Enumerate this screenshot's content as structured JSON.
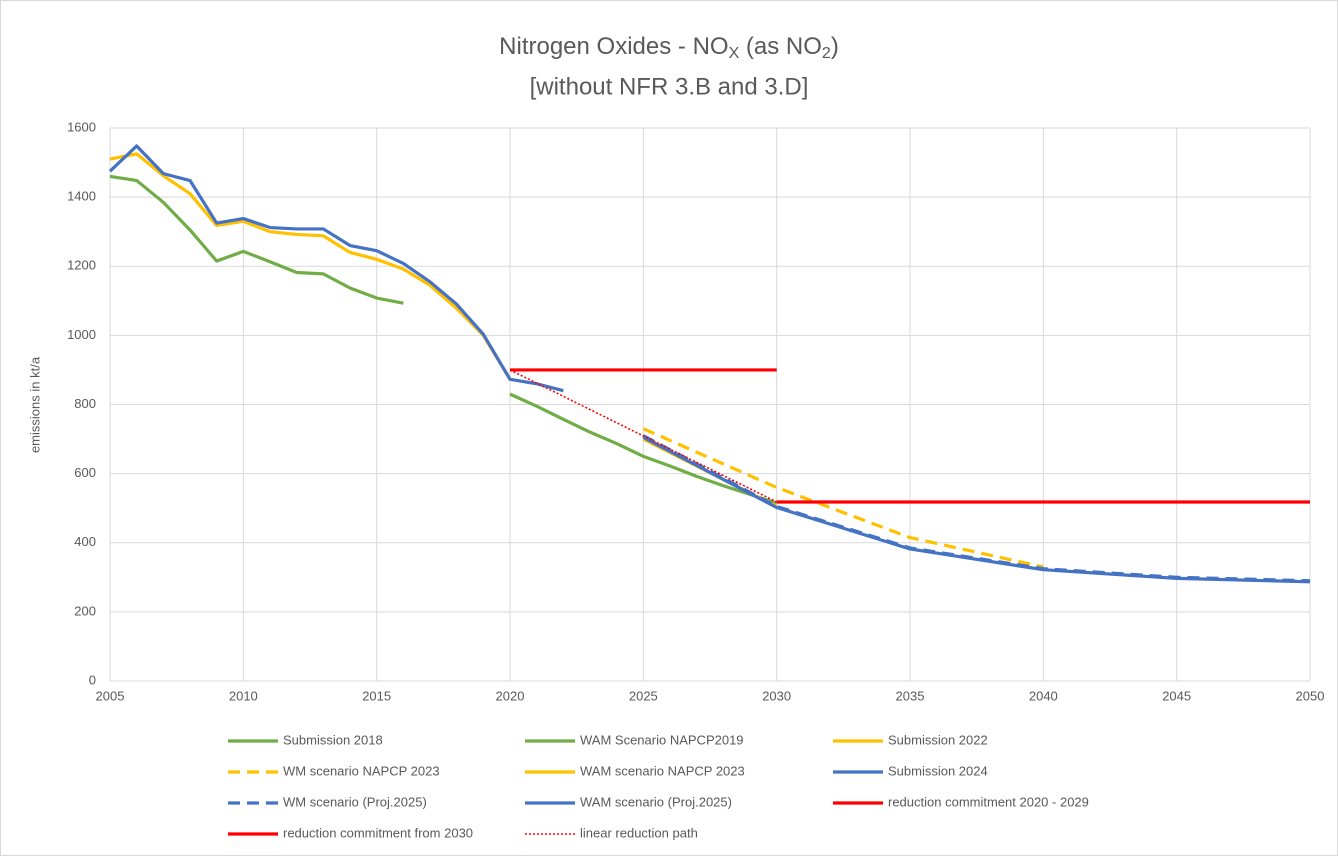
{
  "chart_data": {
    "type": "line",
    "title": [
      {
        "text": "Nitrogen Oxides - NO"
      },
      {
        "text": "X",
        "sub": true
      },
      {
        "text": " (as NO"
      },
      {
        "text": "2",
        "sub": true
      },
      {
        "text": ")"
      }
    ],
    "subtitle": "[without NFR 3.B and 3.D]",
    "y_label": "emissions in kt/a",
    "xlim": [
      2005,
      2050
    ],
    "xticks": [
      2005,
      2010,
      2015,
      2020,
      2025,
      2030,
      2035,
      2040,
      2045,
      2050
    ],
    "ylim": [
      0,
      1600
    ],
    "yticks": [
      0,
      200,
      400,
      600,
      800,
      1000,
      1200,
      1400,
      1600
    ],
    "grid": true,
    "legend": "bottom",
    "series": [
      {
        "name": "Submission 2018",
        "color": "#70ad47",
        "dash": "solid",
        "x": [
          2005,
          2006,
          2007,
          2008,
          2009,
          2010,
          2011,
          2012,
          2013,
          2014,
          2015,
          2016
        ],
        "values": [
          1460,
          1448,
          1385,
          1305,
          1215,
          1243,
          1213,
          1182,
          1178,
          1137,
          1108,
          1093
        ]
      },
      {
        "name": "WAM Scenario NAPCP2019",
        "color": "#70ad47",
        "dash": "solid",
        "x": [
          2020,
          2021,
          2022,
          2023,
          2024,
          2025,
          2026,
          2027,
          2028,
          2029,
          2030
        ],
        "values": [
          830,
          795,
          757,
          720,
          687,
          650,
          622,
          592,
          565,
          540,
          515
        ]
      },
      {
        "name": "Submission 2022",
        "color": "#ffc000",
        "dash": "solid",
        "x": [
          2005,
          2006,
          2007,
          2008,
          2009,
          2010,
          2011,
          2012,
          2013,
          2014,
          2015,
          2016,
          2017,
          2018,
          2019,
          2020
        ],
        "values": [
          1510,
          1525,
          1462,
          1410,
          1318,
          1330,
          1300,
          1292,
          1288,
          1240,
          1220,
          1192,
          1145,
          1078,
          1000,
          873
        ]
      },
      {
        "name": "WM scenario NAPCP 2023",
        "color": "#ffc000",
        "dash": "dashed",
        "x": [
          2025,
          2030,
          2035,
          2040
        ],
        "values": [
          730,
          560,
          415,
          330
        ]
      },
      {
        "name": "WAM scenario NAPCP 2023",
        "color": "#ffc000",
        "dash": "solid",
        "x": [
          2025,
          2030
        ],
        "values": [
          700,
          505
        ]
      },
      {
        "name": "Submission 2024",
        "color": "#4472c4",
        "dash": "solid",
        "x": [
          2005,
          2006,
          2007,
          2008,
          2009,
          2010,
          2011,
          2012,
          2013,
          2014,
          2015,
          2016,
          2017,
          2018,
          2019,
          2020,
          2021,
          2022
        ],
        "values": [
          1475,
          1548,
          1468,
          1448,
          1325,
          1338,
          1312,
          1308,
          1308,
          1260,
          1245,
          1208,
          1155,
          1090,
          1003,
          873,
          860,
          840
        ]
      },
      {
        "name": "WM scenario (Proj.2025)",
        "color": "#4472c4",
        "dash": "dashed",
        "x": [
          2025,
          2030,
          2035,
          2040,
          2045,
          2050
        ],
        "values": [
          710,
          505,
          385,
          325,
          300,
          290
        ]
      },
      {
        "name": "WAM scenario (Proj.2025)",
        "color": "#4472c4",
        "dash": "solid",
        "x": [
          2025,
          2030,
          2035,
          2040,
          2045,
          2050
        ],
        "values": [
          705,
          502,
          382,
          322,
          297,
          287
        ]
      },
      {
        "name": "reduction commitment 2020 - 2029",
        "color": "#ff0000",
        "dash": "solid",
        "x": [
          2020,
          2030
        ],
        "values": [
          900,
          900
        ]
      },
      {
        "name": "reduction commitment from 2030",
        "color": "#ff0000",
        "dash": "solid",
        "x": [
          2030,
          2050
        ],
        "values": [
          518,
          518
        ]
      },
      {
        "name": "linear reduction path",
        "color": "#ff0000",
        "dash": "dotted",
        "x": [
          2020,
          2030
        ],
        "values": [
          900,
          518
        ]
      }
    ]
  }
}
